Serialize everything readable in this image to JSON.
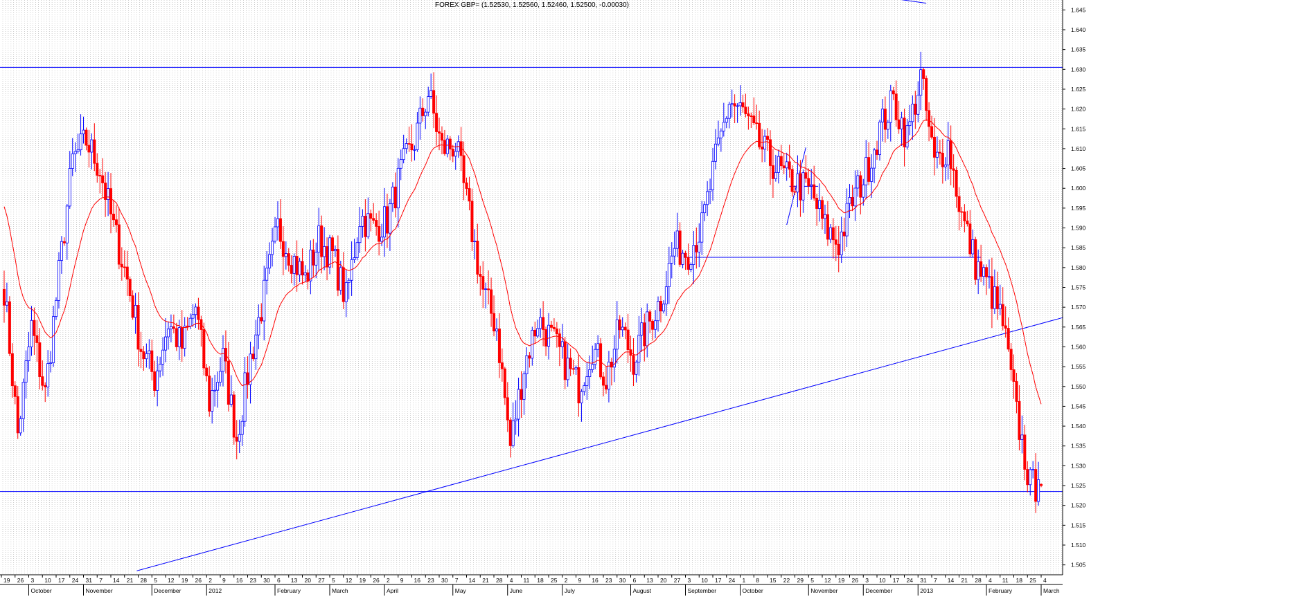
{
  "header": {
    "title": "FOREX GBP= (1.52530, 1.52560, 1.52460, 1.52500, -0.00030)"
  },
  "colors": {
    "up": "#0000ff",
    "down": "#ff0000",
    "ma": "#ff0000",
    "trendline": "#0000ff",
    "grid": "#999999",
    "axis": "#000000",
    "background": "#ffffff"
  },
  "chart_data": {
    "type": "candlestick",
    "title": "FOREX GBP= (1.52530, 1.52560, 1.52460, 1.52500, -0.00030)",
    "instrument": "GBP=",
    "last_bar": {
      "open": 1.5253,
      "high": 1.5256,
      "low": 1.5246,
      "close": 1.525,
      "change": -0.0003
    },
    "ylim": [
      1.5025,
      1.6475
    ],
    "y_ticks": [
      "1.505",
      "1.510",
      "1.515",
      "1.520",
      "1.525",
      "1.530",
      "1.535",
      "1.540",
      "1.545",
      "1.550",
      "1.555",
      "1.560",
      "1.565",
      "1.570",
      "1.575",
      "1.580",
      "1.585",
      "1.590",
      "1.595",
      "1.600",
      "1.605",
      "1.610",
      "1.615",
      "1.620",
      "1.625",
      "1.630",
      "1.635",
      "1.640",
      "1.645"
    ],
    "x_day_ticks": [
      "19",
      "26",
      "3",
      "10",
      "17",
      "24",
      "31",
      "7",
      "14",
      "21",
      "28",
      "5",
      "12",
      "19",
      "26",
      "2",
      "9",
      "16",
      "23",
      "30",
      "6",
      "13",
      "20",
      "27",
      "5",
      "12",
      "19",
      "26",
      "2",
      "9",
      "16",
      "23",
      "30",
      "7",
      "14",
      "21",
      "28",
      "4",
      "11",
      "18",
      "25",
      "2",
      "9",
      "16",
      "23",
      "30",
      "6",
      "13",
      "20",
      "27",
      "3",
      "10",
      "17",
      "24",
      "1",
      "8",
      "15",
      "22",
      "29",
      "5",
      "12",
      "19",
      "26",
      "3",
      "10",
      "17",
      "24",
      "31",
      "7",
      "14",
      "21",
      "28",
      "4",
      "11",
      "18",
      "25",
      "4"
    ],
    "x_month_labels": [
      {
        "label": "October",
        "week": 2
      },
      {
        "label": "November",
        "week": 6
      },
      {
        "label": "December",
        "week": 11
      },
      {
        "label": "2012",
        "week": 15
      },
      {
        "label": "February",
        "week": 20
      },
      {
        "label": "March",
        "week": 24
      },
      {
        "label": "April",
        "week": 28
      },
      {
        "label": "May",
        "week": 33
      },
      {
        "label": "June",
        "week": 37
      },
      {
        "label": "July",
        "week": 41
      },
      {
        "label": "August",
        "week": 46
      },
      {
        "label": "September",
        "week": 50
      },
      {
        "label": "October",
        "week": 54
      },
      {
        "label": "November",
        "week": 59
      },
      {
        "label": "December",
        "week": 63
      },
      {
        "label": "2013",
        "week": 67
      },
      {
        "label": "February",
        "week": 72
      },
      {
        "label": "March",
        "week": 76
      }
    ],
    "week_closes": [
      1.575,
      1.538,
      1.565,
      1.548,
      1.578,
      1.607,
      1.612,
      1.605,
      1.59,
      1.577,
      1.56,
      1.552,
      1.566,
      1.56,
      1.57,
      1.546,
      1.557,
      1.537,
      1.557,
      1.573,
      1.59,
      1.583,
      1.577,
      1.587,
      1.583,
      1.572,
      1.593,
      1.59,
      1.592,
      1.604,
      1.612,
      1.624,
      1.61,
      1.611,
      1.593,
      1.574,
      1.565,
      1.535,
      1.555,
      1.567,
      1.562,
      1.556,
      1.55,
      1.56,
      1.552,
      1.565,
      1.557,
      1.565,
      1.572,
      1.585,
      1.584,
      1.59,
      1.607,
      1.622,
      1.619,
      1.612,
      1.607,
      1.603,
      1.601,
      1.599,
      1.59,
      1.586,
      1.597,
      1.604,
      1.615,
      1.622,
      1.613,
      1.628,
      1.606,
      1.611,
      1.593,
      1.581,
      1.575,
      1.566,
      1.543,
      1.525
    ],
    "moving_average_start": 1.598,
    "horizontal_lines": [
      {
        "name": "resistance",
        "value": 1.6305,
        "x_from_week": -0.5,
        "x_to_week": 77.5
      },
      {
        "name": "support",
        "value": 1.5235,
        "x_from_week": -0.5,
        "x_to_week": 77.5
      },
      {
        "name": "neckline",
        "value": 1.5826,
        "x_from_week": 49.5,
        "x_to_week": 71.5
      }
    ],
    "trend_lines": [
      {
        "name": "uptrend",
        "from": {
          "week": 9.8,
          "value": 1.5035
        },
        "to": {
          "week": 77.5,
          "value": 1.5674
        }
      },
      {
        "name": "top-line",
        "from": {
          "week": 56.5,
          "value": 1.652
        },
        "to": {
          "week": 67.5,
          "value": 1.6467
        }
      },
      {
        "name": "wedge-rise",
        "from": {
          "week": 57.3,
          "value": 1.5908
        },
        "to": {
          "week": 58.7,
          "value": 1.6103
        }
      },
      {
        "name": "wedge-flat",
        "from": {
          "week": 57.5,
          "value": 1.6005
        },
        "to": {
          "week": 59.6,
          "value": 1.6005
        }
      }
    ]
  }
}
